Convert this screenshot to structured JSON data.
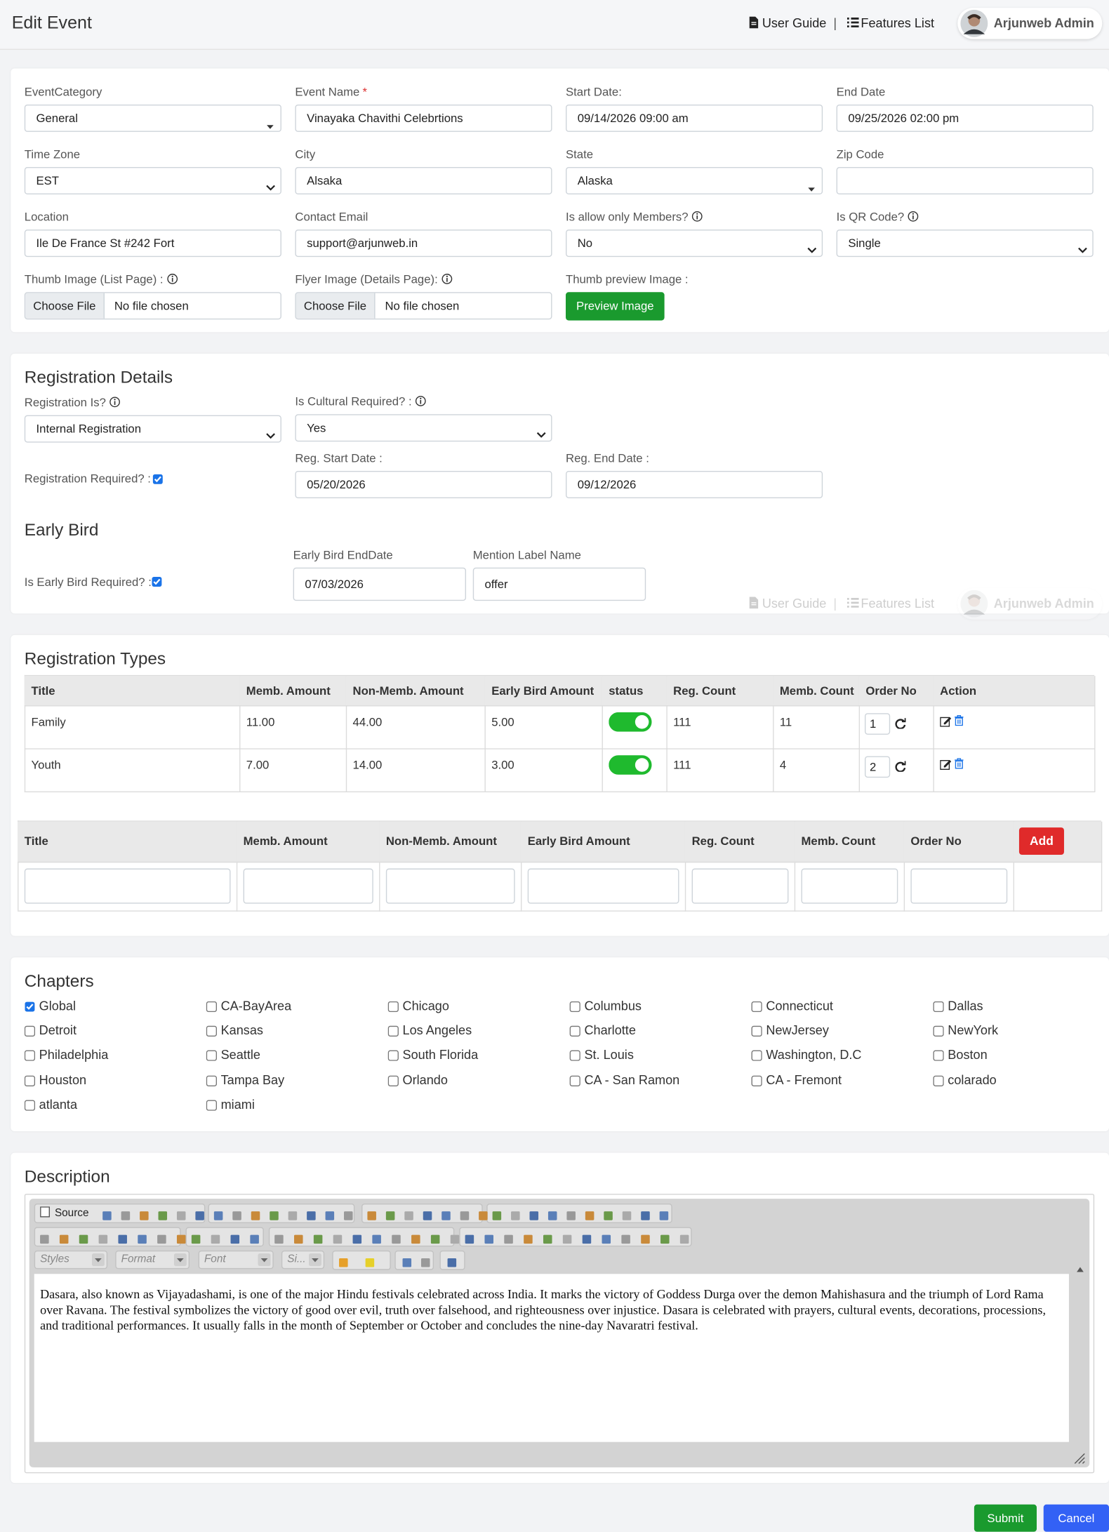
{
  "header": {
    "title": "Edit Event",
    "user_guide": "User Guide",
    "separator": "|",
    "features_list": "Features List",
    "user": "Arjunweb Admin"
  },
  "event": {
    "category": {
      "label": "EventCategory",
      "value": "General"
    },
    "name": {
      "label": "Event Name",
      "required": "*",
      "value": "Vinayaka Chavithi Celebrtions"
    },
    "start_date": {
      "label": "Start Date:",
      "value": "09/14/2026 09:00 am"
    },
    "end_date": {
      "label": "End Date",
      "value": "09/25/2026 02:00 pm"
    },
    "time_zone": {
      "label": "Time Zone",
      "value": "EST"
    },
    "city": {
      "label": "City",
      "value": "Alsaka"
    },
    "state": {
      "label": "State",
      "value": "Alaska"
    },
    "zip": {
      "label": "Zip Code"
    },
    "location": {
      "label": "Location",
      "value": "Ile De France St #242 Fort"
    },
    "contact_email": {
      "label": "Contact Email",
      "value": "support@arjunweb.in"
    },
    "members_only": {
      "label": "Is allow only Members?",
      "value": "No"
    },
    "qr_code": {
      "label": "Is QR Code?",
      "value": "Single"
    },
    "thumb_image": {
      "label": "Thumb Image (List Page) :",
      "button": "Choose File",
      "value": "No file chosen"
    },
    "flyer_image": {
      "label": "Flyer Image (Details Page):",
      "button": "Choose File",
      "value": "No file chosen"
    },
    "thumb_preview": {
      "label": "Thumb preview Image :",
      "button": "Preview Image"
    }
  },
  "registration": {
    "title": "Registration Details",
    "type": {
      "label": "Registration Is?",
      "value": "Internal Registration"
    },
    "cultural": {
      "label": "Is Cultural Required? :",
      "value": "Yes"
    },
    "required": {
      "label": "Registration Required? :",
      "checked": true
    },
    "start_date": {
      "label": "Reg. Start Date :",
      "value": "05/20/2026"
    },
    "end_date": {
      "label": "Reg. End Date :",
      "value": "09/12/2026"
    }
  },
  "early_bird": {
    "title": "Early Bird",
    "required": {
      "label": "Is Early Bird Required? :",
      "checked": true
    },
    "end_date": {
      "label": "Early Bird EndDate",
      "value": "07/03/2026"
    },
    "label_name": {
      "label": "Mention Label Name",
      "value": "offer"
    }
  },
  "registration_types": {
    "title": "Registration Types",
    "columns": [
      "Title",
      "Memb. Amount",
      "Non-Memb. Amount",
      "Early Bird Amount",
      "status",
      "Reg. Count",
      "Memb. Count",
      "Order No",
      "Action"
    ],
    "rows": [
      [
        "Family",
        "11.00",
        "44.00",
        "5.00",
        true,
        "111",
        "11",
        "1"
      ],
      [
        "Youth",
        "7.00",
        "14.00",
        "3.00",
        true,
        "111",
        "4",
        "2"
      ]
    ]
  },
  "new_type": {
    "columns": [
      "Title",
      "Memb. Amount",
      "Non-Memb. Amount",
      "Early Bird Amount",
      "Reg. Count",
      "Memb. Count",
      "Order No"
    ],
    "button": "Add"
  },
  "chapters": {
    "title": "Chapters",
    "items": [
      {
        "name": "Global",
        "checked": true
      },
      {
        "name": "CA-BayArea",
        "checked": false
      },
      {
        "name": "Chicago",
        "checked": false
      },
      {
        "name": "Columbus",
        "checked": false
      },
      {
        "name": "Connecticut",
        "checked": false
      },
      {
        "name": "Dallas",
        "checked": false
      },
      {
        "name": "Detroit",
        "checked": false
      },
      {
        "name": "Kansas",
        "checked": false
      },
      {
        "name": "Los Angeles",
        "checked": false
      },
      {
        "name": "Charlotte",
        "checked": false
      },
      {
        "name": "NewJersey",
        "checked": false
      },
      {
        "name": "NewYork",
        "checked": false
      },
      {
        "name": "Philadelphia",
        "checked": false
      },
      {
        "name": "Seattle",
        "checked": false
      },
      {
        "name": "South Florida",
        "checked": false
      },
      {
        "name": "St. Louis",
        "checked": false
      },
      {
        "name": "Washington, D.C",
        "checked": false
      },
      {
        "name": "Boston",
        "checked": false
      },
      {
        "name": "Houston",
        "checked": false
      },
      {
        "name": "Tampa Bay",
        "checked": false
      },
      {
        "name": "Orlando",
        "checked": false
      },
      {
        "name": "CA - San Ramon",
        "checked": false
      },
      {
        "name": "CA - Fremont",
        "checked": false
      },
      {
        "name": "colarado",
        "checked": false
      },
      {
        "name": "atlanta",
        "checked": false
      },
      {
        "name": "miami",
        "checked": false
      }
    ]
  },
  "description": {
    "title": "Description",
    "toolbar": {
      "source": "Source",
      "styles": "Styles",
      "format": "Format",
      "font": "Font",
      "size": "Si..."
    },
    "text": "Dasara, also known as Vijayadashami, is one of the major Hindu festivals celebrated across India. It marks the victory of Goddess Durga over the demon Mahishasura and the triumph of Lord Rama over Ravana. The festival symbolizes the victory of good over evil, truth over falsehood, and righteousness over injustice. Dasara is celebrated with prayers, cultural events, decorations, processions, and traditional performances. It usually falls in the month of September or October and concludes the nine-day Navaratri festival."
  },
  "actions": {
    "submit": "Submit",
    "cancel": "Cancel"
  }
}
